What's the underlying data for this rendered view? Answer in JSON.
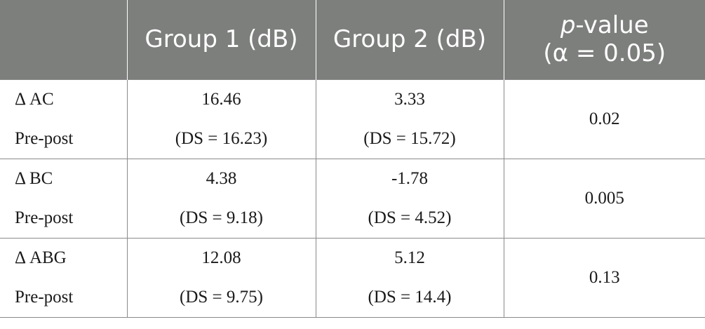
{
  "header": {
    "col0": "",
    "col1": "Group 1 (dB)",
    "col2": "Group 2 (dB)",
    "col3_italic": "p",
    "col3_rest": "-value",
    "col3_line2": "(α = 0.05)"
  },
  "rows": [
    {
      "label_line1": "Δ AC",
      "label_line2": "Pre-post",
      "g1_value": "16.46",
      "g1_sd": "(DS = 16.23)",
      "g2_value": "3.33",
      "g2_sd": "(DS = 15.72)",
      "p_value": "0.02"
    },
    {
      "label_line1": "Δ BC",
      "label_line2": "Pre-post",
      "g1_value": "4.38",
      "g1_sd": "(DS = 9.18)",
      "g2_value": "-1.78",
      "g2_sd": "(DS = 4.52)",
      "p_value": "0.005"
    },
    {
      "label_line1": "Δ ABG",
      "label_line2": "Pre-post",
      "g1_value": "12.08",
      "g1_sd": "(DS = 9.75)",
      "g2_value": "5.12",
      "g2_sd": "(DS = 14.4)",
      "p_value": "0.13"
    }
  ]
}
